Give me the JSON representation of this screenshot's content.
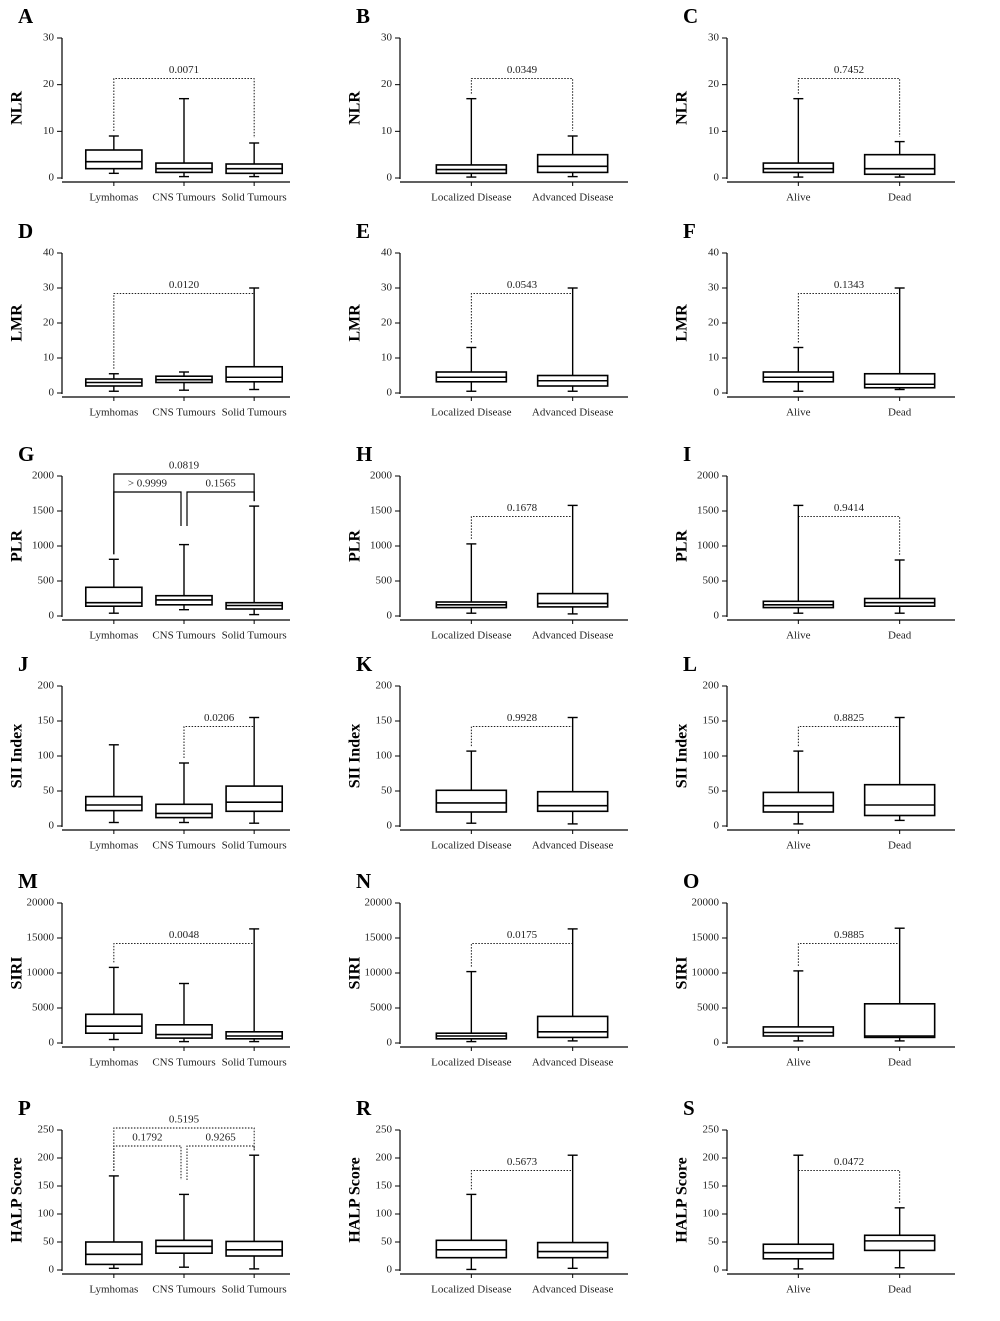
{
  "chart_data": [
    {
      "type": "box",
      "panel": "A",
      "ylabel": "NLR",
      "ylim": [
        0,
        30
      ],
      "yticks": [
        0,
        10,
        20,
        30
      ],
      "bracket_style": "dotted",
      "categories": [
        "Lymhomas",
        "CNS Tumours",
        "Solid Tumours"
      ],
      "boxes": [
        {
          "min": 1,
          "q1": 2,
          "median": 3.5,
          "q3": 6,
          "max": 9
        },
        {
          "min": 0.3,
          "q1": 1.2,
          "median": 2,
          "q3": 3.2,
          "max": 17
        },
        {
          "min": 0.3,
          "q1": 1,
          "median": 2,
          "q3": 3,
          "max": 7.5
        }
      ],
      "annotations": [
        {
          "text": "0.0071",
          "between": [
            "Lymhomas",
            "Solid Tumours"
          ]
        }
      ]
    },
    {
      "type": "box",
      "panel": "B",
      "ylabel": "NLR",
      "ylim": [
        0,
        30
      ],
      "yticks": [
        0,
        10,
        20,
        30
      ],
      "bracket_style": "dotted",
      "categories": [
        "Localized Disease",
        "Advanced Disease"
      ],
      "boxes": [
        {
          "min": 0.2,
          "q1": 1,
          "median": 1.8,
          "q3": 2.8,
          "max": 17
        },
        {
          "min": 0.3,
          "q1": 1.2,
          "median": 2.5,
          "q3": 5,
          "max": 9
        }
      ],
      "annotations": [
        {
          "text": "0.0349",
          "between": [
            "Localized Disease",
            "Advanced Disease"
          ]
        }
      ]
    },
    {
      "type": "box",
      "panel": "C",
      "ylabel": "NLR",
      "ylim": [
        0,
        30
      ],
      "yticks": [
        0,
        10,
        20,
        30
      ],
      "bracket_style": "dotted",
      "categories": [
        "Alive",
        "Dead"
      ],
      "boxes": [
        {
          "min": 0.2,
          "q1": 1.2,
          "median": 2,
          "q3": 3.2,
          "max": 17
        },
        {
          "min": 0.2,
          "q1": 0.8,
          "median": 2,
          "q3": 5,
          "max": 7.8
        }
      ],
      "annotations": [
        {
          "text": "0.7452",
          "between": [
            "Alive",
            "Dead"
          ]
        }
      ]
    },
    {
      "type": "box",
      "panel": "D",
      "ylabel": "LMR",
      "ylim": [
        0,
        40
      ],
      "yticks": [
        0,
        10,
        20,
        30,
        40
      ],
      "bracket_style": "dotted",
      "categories": [
        "Lymhomas",
        "CNS Tumours",
        "Solid Tumours"
      ],
      "boxes": [
        {
          "min": 0.5,
          "q1": 2,
          "median": 3,
          "q3": 4,
          "max": 5.5
        },
        {
          "min": 0.8,
          "q1": 3,
          "median": 3.8,
          "q3": 4.8,
          "max": 6
        },
        {
          "min": 1,
          "q1": 3.2,
          "median": 4.5,
          "q3": 7.5,
          "max": 30
        }
      ],
      "annotations": [
        {
          "text": "0.0120",
          "between": [
            "Lymhomas",
            "Solid Tumours"
          ]
        }
      ]
    },
    {
      "type": "box",
      "panel": "E",
      "ylabel": "LMR",
      "ylim": [
        0,
        40
      ],
      "yticks": [
        0,
        10,
        20,
        30,
        40
      ],
      "bracket_style": "dotted",
      "categories": [
        "Localized Disease",
        "Advanced Disease"
      ],
      "boxes": [
        {
          "min": 0.5,
          "q1": 3.2,
          "median": 4.5,
          "q3": 6,
          "max": 13
        },
        {
          "min": 0.5,
          "q1": 2,
          "median": 3.5,
          "q3": 5,
          "max": 30
        }
      ],
      "annotations": [
        {
          "text": "0.0543",
          "between": [
            "Localized Disease",
            "Advanced Disease"
          ]
        }
      ]
    },
    {
      "type": "box",
      "panel": "F",
      "ylabel": "LMR",
      "ylim": [
        0,
        40
      ],
      "yticks": [
        0,
        10,
        20,
        30,
        40
      ],
      "bracket_style": "dotted",
      "categories": [
        "Alive",
        "Dead"
      ],
      "boxes": [
        {
          "min": 0.5,
          "q1": 3.2,
          "median": 4.5,
          "q3": 6,
          "max": 13
        },
        {
          "min": 1,
          "q1": 1.5,
          "median": 2.5,
          "q3": 5.5,
          "max": 30
        }
      ],
      "annotations": [
        {
          "text": "0.1343",
          "between": [
            "Alive",
            "Dead"
          ]
        }
      ]
    },
    {
      "type": "box",
      "panel": "G",
      "ylabel": "PLR",
      "ylim": [
        0,
        2000
      ],
      "yticks": [
        0,
        500,
        1000,
        1500,
        2000
      ],
      "bracket_style": "solid",
      "categories": [
        "Lymhomas",
        "CNS Tumours",
        "Solid Tumours"
      ],
      "boxes": [
        {
          "min": 40,
          "q1": 140,
          "median": 190,
          "q3": 410,
          "max": 810
        },
        {
          "min": 90,
          "q1": 160,
          "median": 230,
          "q3": 290,
          "max": 1020
        },
        {
          "min": 20,
          "q1": 100,
          "median": 150,
          "q3": 190,
          "max": 1570
        }
      ],
      "annotations": [
        {
          "text": "0.0819",
          "between": [
            "Lymhomas",
            "Solid Tumours"
          ]
        },
        {
          "text": "> 0.9999",
          "between": [
            "Lymhomas",
            "CNS Tumours"
          ]
        },
        {
          "text": "0.1565",
          "between": [
            "CNS Tumours",
            "Solid Tumours"
          ]
        }
      ]
    },
    {
      "type": "box",
      "panel": "H",
      "ylabel": "PLR",
      "ylim": [
        0,
        2000
      ],
      "yticks": [
        0,
        500,
        1000,
        1500,
        2000
      ],
      "bracket_style": "dotted",
      "categories": [
        "Localized Disease",
        "Advanced Disease"
      ],
      "boxes": [
        {
          "min": 40,
          "q1": 120,
          "median": 160,
          "q3": 200,
          "max": 1030
        },
        {
          "min": 30,
          "q1": 130,
          "median": 180,
          "q3": 320,
          "max": 1580
        }
      ],
      "annotations": [
        {
          "text": "0.1678",
          "between": [
            "Localized Disease",
            "Advanced Disease"
          ]
        }
      ]
    },
    {
      "type": "box",
      "panel": "I",
      "ylabel": "PLR",
      "ylim": [
        0,
        2000
      ],
      "yticks": [
        0,
        500,
        1000,
        1500,
        2000
      ],
      "bracket_style": "dotted",
      "categories": [
        "Alive",
        "Dead"
      ],
      "boxes": [
        {
          "min": 40,
          "q1": 120,
          "median": 160,
          "q3": 210,
          "max": 1580
        },
        {
          "min": 40,
          "q1": 140,
          "median": 190,
          "q3": 250,
          "max": 800
        }
      ],
      "annotations": [
        {
          "text": "0.9414",
          "between": [
            "Alive",
            "Dead"
          ]
        }
      ]
    },
    {
      "type": "box",
      "panel": "J",
      "ylabel": "SII Index",
      "ylim": [
        0,
        200
      ],
      "yticks": [
        0,
        50,
        100,
        150,
        200
      ],
      "bracket_style": "dotted",
      "categories": [
        "Lymhomas",
        "CNS Tumours",
        "Solid Tumours"
      ],
      "boxes": [
        {
          "min": 5,
          "q1": 22,
          "median": 30,
          "q3": 42,
          "max": 116
        },
        {
          "min": 5,
          "q1": 12,
          "median": 18,
          "q3": 31,
          "max": 90
        },
        {
          "min": 4,
          "q1": 21,
          "median": 34,
          "q3": 57,
          "max": 155
        }
      ],
      "annotations": [
        {
          "text": "0.0206",
          "between": [
            "CNS Tumours",
            "Solid Tumours"
          ]
        }
      ]
    },
    {
      "type": "box",
      "panel": "K",
      "ylabel": "SII Index",
      "ylim": [
        0,
        200
      ],
      "yticks": [
        0,
        50,
        100,
        150,
        200
      ],
      "bracket_style": "dotted",
      "categories": [
        "Localized Disease",
        "Advanced Disease"
      ],
      "boxes": [
        {
          "min": 4,
          "q1": 20,
          "median": 33,
          "q3": 51,
          "max": 107
        },
        {
          "min": 3,
          "q1": 21,
          "median": 29,
          "q3": 49,
          "max": 155
        }
      ],
      "annotations": [
        {
          "text": "0.9928",
          "between": [
            "Localized Disease",
            "Advanced Disease"
          ]
        }
      ]
    },
    {
      "type": "box",
      "panel": "L",
      "ylabel": "SII Index",
      "ylim": [
        0,
        200
      ],
      "yticks": [
        0,
        50,
        100,
        150,
        200
      ],
      "bracket_style": "dotted",
      "categories": [
        "Alive",
        "Dead"
      ],
      "boxes": [
        {
          "min": 3,
          "q1": 20,
          "median": 29,
          "q3": 48,
          "max": 107
        },
        {
          "min": 8,
          "q1": 15,
          "median": 30,
          "q3": 59,
          "max": 155
        }
      ],
      "annotations": [
        {
          "text": "0.8825",
          "between": [
            "Alive",
            "Dead"
          ]
        }
      ]
    },
    {
      "type": "box",
      "panel": "M",
      "ylabel": "SIRI",
      "ylim": [
        0,
        20000
      ],
      "yticks": [
        0,
        5000,
        10000,
        15000,
        20000
      ],
      "bracket_style": "dotted",
      "categories": [
        "Lymhomas",
        "CNS Tumours",
        "Solid Tumours"
      ],
      "boxes": [
        {
          "min": 500,
          "q1": 1400,
          "median": 2400,
          "q3": 4100,
          "max": 10800
        },
        {
          "min": 200,
          "q1": 700,
          "median": 1200,
          "q3": 2600,
          "max": 8500
        },
        {
          "min": 200,
          "q1": 600,
          "median": 1000,
          "q3": 1600,
          "max": 16300
        }
      ],
      "annotations": [
        {
          "text": "0.0048",
          "between": [
            "Lymhomas",
            "Solid Tumours"
          ]
        }
      ]
    },
    {
      "type": "box",
      "panel": "N",
      "ylabel": "SIRI",
      "ylim": [
        0,
        20000
      ],
      "yticks": [
        0,
        5000,
        10000,
        15000,
        20000
      ],
      "bracket_style": "dotted",
      "categories": [
        "Localized Disease",
        "Advanced Disease"
      ],
      "boxes": [
        {
          "min": 200,
          "q1": 600,
          "median": 1000,
          "q3": 1400,
          "max": 10200
        },
        {
          "min": 300,
          "q1": 800,
          "median": 1600,
          "q3": 3800,
          "max": 16300
        }
      ],
      "annotations": [
        {
          "text": "0.0175",
          "between": [
            "Localized Disease",
            "Advanced Disease"
          ]
        }
      ]
    },
    {
      "type": "box",
      "panel": "O",
      "ylabel": "SIRI",
      "ylim": [
        0,
        20000
      ],
      "yticks": [
        0,
        5000,
        10000,
        15000,
        20000
      ],
      "bracket_style": "dotted",
      "categories": [
        "Alive",
        "Dead"
      ],
      "boxes": [
        {
          "min": 300,
          "q1": 1000,
          "median": 1500,
          "q3": 2300,
          "max": 10300
        },
        {
          "min": 300,
          "q1": 800,
          "median": 1000,
          "q3": 5600,
          "max": 16400
        }
      ],
      "annotations": [
        {
          "text": "0.9885",
          "between": [
            "Alive",
            "Dead"
          ]
        }
      ]
    },
    {
      "type": "box",
      "panel": "P",
      "ylabel": "HALP Score",
      "ylim": [
        0,
        250
      ],
      "yticks": [
        0,
        50,
        100,
        150,
        200,
        250
      ],
      "bracket_style": "dotted",
      "categories": [
        "Lymhomas",
        "CNS Tumours",
        "Solid Tumours"
      ],
      "boxes": [
        {
          "min": 3,
          "q1": 10,
          "median": 28,
          "q3": 50,
          "max": 168
        },
        {
          "min": 5,
          "q1": 30,
          "median": 42,
          "q3": 53,
          "max": 135
        },
        {
          "min": 2,
          "q1": 25,
          "median": 36,
          "q3": 51,
          "max": 205
        }
      ],
      "annotations": [
        {
          "text": "0.5195",
          "between": [
            "Lymhomas",
            "Solid Tumours"
          ]
        },
        {
          "text": "0.1792",
          "between": [
            "Lymhomas",
            "CNS Tumours"
          ]
        },
        {
          "text": "0.9265",
          "between": [
            "CNS Tumours",
            "Solid Tumours"
          ]
        }
      ]
    },
    {
      "type": "box",
      "panel": "R",
      "ylabel": "HALP Score",
      "ylim": [
        0,
        250
      ],
      "yticks": [
        0,
        50,
        100,
        150,
        200,
        250
      ],
      "bracket_style": "dotted",
      "categories": [
        "Localized Disease",
        "Advanced Disease"
      ],
      "boxes": [
        {
          "min": 1,
          "q1": 22,
          "median": 36,
          "q3": 53,
          "max": 135
        },
        {
          "min": 3,
          "q1": 22,
          "median": 33,
          "q3": 49,
          "max": 205
        }
      ],
      "annotations": [
        {
          "text": "0.5673",
          "between": [
            "Localized Disease",
            "Advanced Disease"
          ]
        }
      ]
    },
    {
      "type": "box",
      "panel": "S",
      "ylabel": "HALP Score",
      "ylim": [
        0,
        250
      ],
      "yticks": [
        0,
        50,
        100,
        150,
        200,
        250
      ],
      "bracket_style": "dotted",
      "categories": [
        "Alive",
        "Dead"
      ],
      "boxes": [
        {
          "min": 2,
          "q1": 20,
          "median": 31,
          "q3": 46,
          "max": 205
        },
        {
          "min": 4,
          "q1": 35,
          "median": 52,
          "q3": 62,
          "max": 111
        }
      ],
      "annotations": [
        {
          "text": "0.0472",
          "between": [
            "Alive",
            "Dead"
          ]
        }
      ]
    }
  ]
}
